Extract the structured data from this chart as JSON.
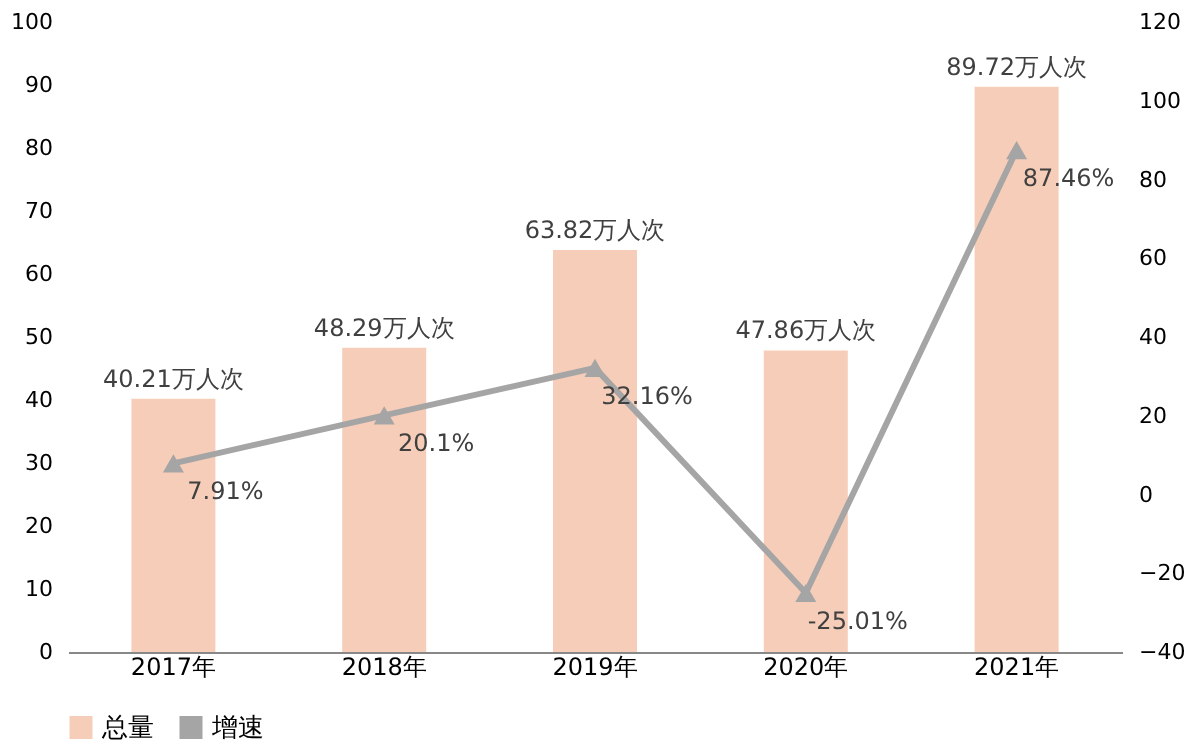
{
  "chart_data": {
    "type": "bar",
    "categories": [
      "2017年",
      "2018年",
      "2019年",
      "2020年",
      "2021年"
    ],
    "series": [
      {
        "name": "总量",
        "color": "#f6cdb8",
        "values": [
          40.21,
          48.29,
          63.82,
          47.86,
          89.72
        ],
        "value_labels": [
          "40.21万人次",
          "48.29万人次",
          "63.82万人次",
          "47.86万人次",
          "89.72万人次"
        ]
      },
      {
        "name": "增速",
        "type": "line",
        "axis": "y2",
        "color": "#a5a5a5",
        "marker": "triangle",
        "values": [
          7.91,
          20.1,
          32.16,
          -25.01,
          87.46
        ],
        "value_labels": [
          "7.91%",
          "20.1%",
          "32.16%",
          "-25.01%",
          "87.46%"
        ]
      }
    ],
    "ylim": [
      0,
      100
    ],
    "yticks": [
      0,
      10,
      20,
      30,
      40,
      50,
      60,
      70,
      80,
      90,
      100
    ],
    "y2lim": [
      -40,
      120
    ],
    "y2ticks": [
      -40,
      -20,
      0,
      20,
      40,
      60,
      80,
      100,
      120
    ],
    "grid": false,
    "legend": "bottom"
  }
}
